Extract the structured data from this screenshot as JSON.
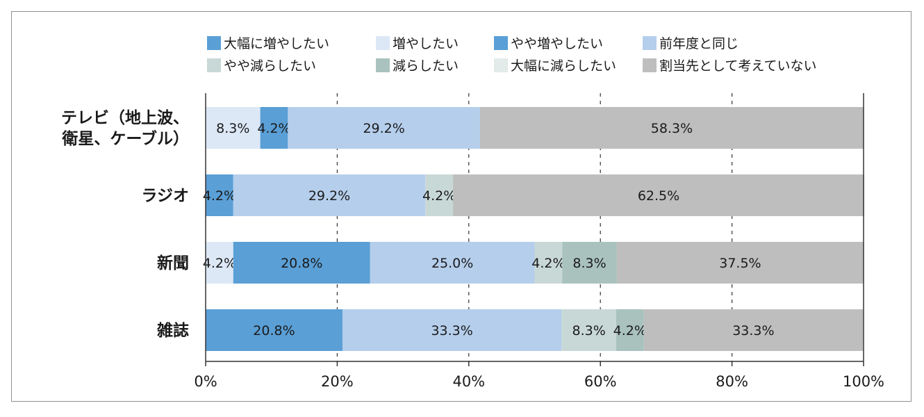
{
  "chart_data": {
    "type": "bar",
    "orientation": "horizontal",
    "stacked": true,
    "title": "",
    "xlabel": "",
    "ylabel": "",
    "xlim": [
      0,
      100
    ],
    "x_tick_labels": [
      "0%",
      "20%",
      "40%",
      "60%",
      "80%",
      "100%"
    ],
    "grid": "vertical dashed",
    "legend_position": "top",
    "categories": [
      [
        "テレビ（地上波、",
        "衛星、ケーブル）"
      ],
      [
        "ラジオ"
      ],
      [
        "新聞"
      ],
      [
        "雑誌"
      ]
    ],
    "series": [
      {
        "name": "大幅に増やしたい",
        "color": "#5a9fd6",
        "values": [
          0,
          0,
          0,
          0
        ]
      },
      {
        "name": "増やしたい",
        "color": "#dce8f6",
        "values": [
          8.3,
          0,
          4.2,
          0
        ]
      },
      {
        "name": "やや増やしたい",
        "color": "#5a9fd6",
        "values": [
          4.2,
          4.2,
          20.8,
          20.8
        ]
      },
      {
        "name": "前年度と同じ",
        "color": "#b5ceec",
        "values": [
          29.2,
          29.2,
          25.0,
          33.3
        ]
      },
      {
        "name": "やや減らしたい",
        "color": "#c8d8d6",
        "values": [
          0,
          4.2,
          4.2,
          8.3
        ]
      },
      {
        "name": "減らしたい",
        "color": "#a9c2bd",
        "values": [
          0,
          0,
          8.3,
          4.2
        ]
      },
      {
        "name": "大幅に減らしたい",
        "color": "#e2ebe9",
        "values": [
          0,
          0,
          0,
          0
        ]
      },
      {
        "name": "割当先として考えていない",
        "color": "#bdbebd",
        "values": [
          58.3,
          62.5,
          37.5,
          33.3
        ]
      }
    ],
    "data_labels": [
      [
        "",
        "8.3%",
        "4.2%",
        "29.2%",
        "",
        "",
        "",
        "58.3%"
      ],
      [
        "",
        "",
        "4.2%",
        "29.2%",
        "4.2%",
        "",
        "",
        "62.5%"
      ],
      [
        "",
        "4.2%",
        "20.8%",
        "25.0%",
        "4.2%",
        "8.3%",
        "",
        "37.5%"
      ],
      [
        "",
        "",
        "20.8%",
        "33.3%",
        "8.3%",
        "4.2%",
        "",
        "33.3%"
      ]
    ]
  }
}
